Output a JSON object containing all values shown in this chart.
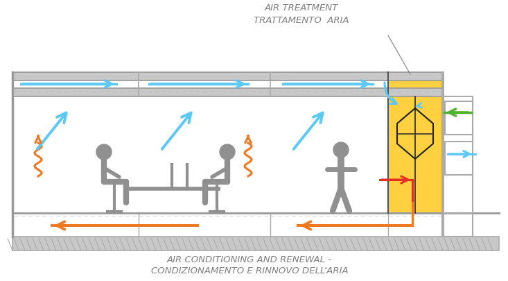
{
  "title_top1": "AIR TREATMENT",
  "title_top2": "TRATTAMENTO  ARIA",
  "title_bot1": "AIR CONDITIONING AND RENEWAL -",
  "title_bot2": "CONDIZIONAMENTO E RINNOVO DELL’ARIA",
  "bg_color": "#ffffff",
  "ceiling_color": "#c8c8c8",
  "person_color": "#909090",
  "blue_arrow": "#5bc8f5",
  "orange_arrow": "#f07820",
  "green_arrow": "#50b030",
  "red_arrow": "#e03020",
  "yellow_fill": "#ffd040",
  "text_color": "#808080",
  "figsize": [
    7.33,
    4.06
  ],
  "dpi": 100
}
